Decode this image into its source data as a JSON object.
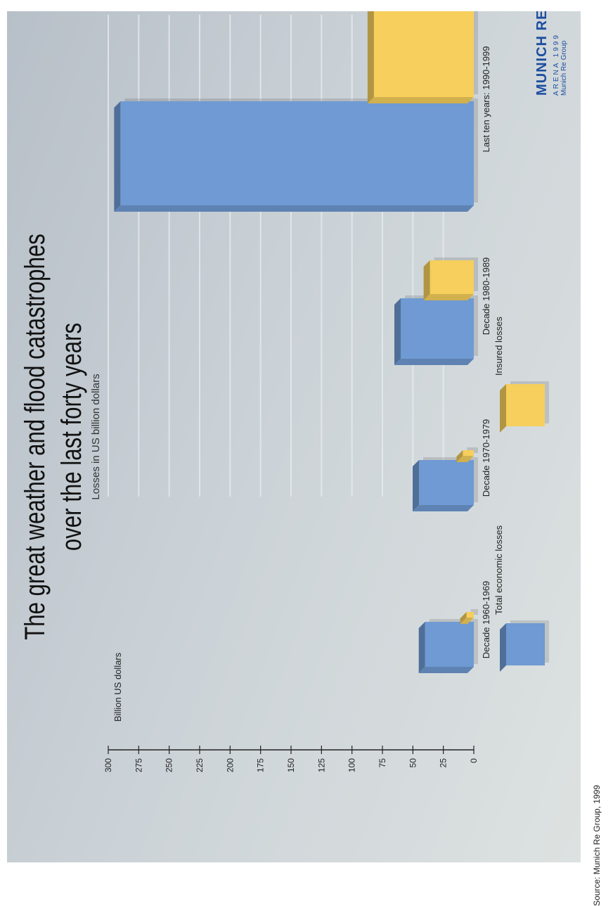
{
  "title_line1": "The great weather and flood catastrophes",
  "title_line2": "over the last forty years",
  "subtitle": "Losses in US billion dollars",
  "source": "Source: Munich Re Group, 1999",
  "logo": {
    "brand": "MUNICH RE",
    "sub": "ARENA 1999",
    "org": "Munich Re Group"
  },
  "chart_data": {
    "type": "bar",
    "title": "The great weather and flood catastrophes over the last forty years",
    "subtitle": "Losses in US billion dollars",
    "ylabel": "Billion US dollars",
    "ylim": [
      0,
      300
    ],
    "yticks": [
      0,
      25,
      50,
      75,
      100,
      125,
      150,
      175,
      200,
      225,
      250,
      275,
      300
    ],
    "categories": [
      "Decade 1960-1969",
      "Decade 1970-1979",
      "Decade 1980-1989",
      "Last ten years: 1990-1999"
    ],
    "series": [
      {
        "name": "Total economic losses",
        "values": [
          40,
          45,
          60,
          290
        ],
        "color": "#6f9ad3"
      },
      {
        "name": "Insured losses",
        "values": [
          6,
          9,
          36,
          82
        ],
        "color": "#f6cf5c"
      }
    ],
    "legend_position": "bottom"
  }
}
